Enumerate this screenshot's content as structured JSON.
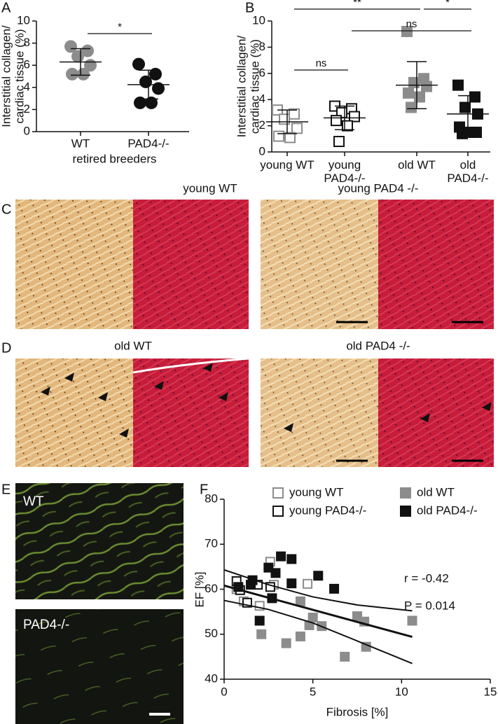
{
  "panels": [
    "A",
    "B",
    "C",
    "D",
    "E",
    "F"
  ],
  "chart_data": [
    {
      "type": "dot",
      "marker": "circle",
      "ylabel": [
        "Interstitial collagen/",
        "cardiac tissue (%)"
      ],
      "xlabel": "retired breeders",
      "categories": [
        "WT",
        "PAD4-/-"
      ],
      "colors": [
        "#8c8c8c",
        "#111111"
      ],
      "filled": [
        true,
        true
      ],
      "values": [
        [
          7.7,
          7.3,
          6.8,
          6.0,
          5.2,
          5.2
        ],
        [
          6.1,
          5.2,
          4.5,
          3.9,
          2.6,
          2.6
        ]
      ],
      "means": [
        6.3,
        4.25
      ],
      "sds": [
        1.2,
        1.3
      ],
      "ylim": [
        0,
        10
      ],
      "yticks": [
        0,
        2,
        4,
        6,
        8,
        10
      ],
      "comparisons": [
        {
          "label": "*",
          "between": [
            0,
            1
          ]
        }
      ]
    },
    {
      "type": "dot",
      "marker": "square",
      "ylabel": [
        "Interstitial collagen/",
        "cardiac tissue (%)"
      ],
      "categories": [
        "young WT",
        "young PAD4-/-",
        "old WT",
        "old PAD4-/-"
      ],
      "colors": [
        "#8c8c8c",
        "#111111",
        "#8c8c8c",
        "#111111"
      ],
      "filled": [
        false,
        false,
        true,
        true
      ],
      "values": [
        [
          3.2,
          2.9,
          2.5,
          1.8,
          1.2,
          1.1
        ],
        [
          3.5,
          3.3,
          3.0,
          2.7,
          2.4,
          2.0,
          0.8
        ],
        [
          9.2,
          5.6,
          5.3,
          5.0,
          4.5,
          4.2,
          3.4
        ],
        [
          5.1,
          4.2,
          3.4,
          2.9,
          1.9,
          1.5,
          1.4,
          1.5
        ]
      ],
      "means": [
        2.3,
        2.6,
        5.1,
        2.9
      ],
      "sds": [
        0.9,
        0.9,
        1.8,
        1.4
      ],
      "ylim": [
        0,
        10
      ],
      "yticks": [
        0,
        2,
        4,
        6,
        8,
        10
      ],
      "comparisons": [
        {
          "label": "**",
          "between": [
            0,
            2
          ]
        },
        {
          "label": "*",
          "between": [
            2,
            3
          ]
        },
        {
          "label": "ns",
          "between": [
            1,
            3
          ]
        },
        {
          "label": "ns",
          "between": [
            0,
            1
          ]
        }
      ]
    },
    {
      "type": "scatter",
      "xlabel": "Fibrosis [%]",
      "ylabel": "EF [%]",
      "xlim": [
        0,
        15
      ],
      "xticks": [
        0,
        5,
        10,
        15
      ],
      "ylim": [
        40,
        80
      ],
      "yticks": [
        40,
        50,
        60,
        70,
        80
      ],
      "series": [
        {
          "name": "young WT",
          "color": "#8c8c8c",
          "filled": false,
          "x": [
            2.6,
            2.8,
            4.7,
            2.0,
            1.1,
            0.7
          ],
          "y": [
            66.1,
            61.0,
            61.2,
            56.3,
            57.3,
            60.0
          ]
        },
        {
          "name": "young PAD4-/-",
          "color": "#111111",
          "filled": false,
          "x": [
            0.7,
            1.9,
            1.3,
            0.9,
            2.6
          ],
          "y": [
            61.8,
            61.0,
            57.0,
            59.8,
            60.5
          ]
        },
        {
          "name": "old WT",
          "color": "#8c8c8c",
          "filled": true,
          "x": [
            10.6,
            8.0,
            7.5,
            7.9,
            6.8,
            5.5,
            5.0,
            4.8,
            4.3,
            4.3,
            3.5,
            2.1
          ],
          "y": [
            53.0,
            47.2,
            54.0,
            52.8,
            45.0,
            51.8,
            53.7,
            52.0,
            57.3,
            49.5,
            48.0,
            50.0
          ]
        },
        {
          "name": "old PAD4-/-",
          "color": "#111111",
          "filled": true,
          "x": [
            3.2,
            3.8,
            2.5,
            2.9,
            1.6,
            5.3,
            3.8,
            6.2,
            0.8,
            2.7,
            2.0,
            1.5
          ],
          "y": [
            67.3,
            66.7,
            64.8,
            63.6,
            62.0,
            63.0,
            61.3,
            60.1,
            60.5,
            58.0,
            53.0,
            61.0
          ]
        }
      ],
      "fit": {
        "x": [
          0,
          10.6
        ],
        "y": [
          60.8,
          49.4
        ]
      },
      "ci_upper": {
        "x": [
          0,
          2.5,
          5,
          7.5,
          10.6
        ],
        "y": [
          64.3,
          61.0,
          58.3,
          56.5,
          55.2
        ]
      },
      "ci_lower": {
        "x": [
          0,
          2.5,
          5,
          7.5,
          10.6
        ],
        "y": [
          57.5,
          55.5,
          52.5,
          48.5,
          43.5
        ]
      },
      "annotations": [
        "r = -0.42",
        "P = 0.014"
      ]
    }
  ],
  "micrographs": {
    "C": [
      "young WT",
      "young PAD4 -/-"
    ],
    "D": [
      "old WT",
      "old PAD4 -/-"
    ],
    "E": [
      "WT",
      "PAD4-/-"
    ]
  }
}
